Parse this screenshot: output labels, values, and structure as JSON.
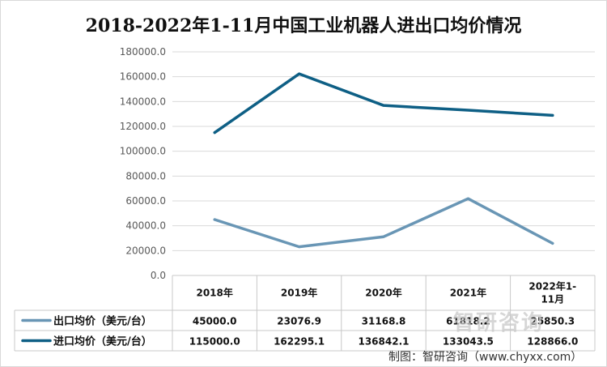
{
  "chart_data": {
    "type": "line",
    "title": "2018-2022年1-11月中国工业机器人进出口均价情况",
    "categories": [
      "2018年",
      "2019年",
      "2020年",
      "2021年",
      "2022年1-11月"
    ],
    "category_lines": [
      [
        "2018年"
      ],
      [
        "2019年"
      ],
      [
        "2020年"
      ],
      [
        "2021年"
      ],
      [
        "2022年1-",
        "11月"
      ]
    ],
    "series": [
      {
        "name": "出口均价（美元/台）",
        "color": "#6996b5",
        "values": [
          45000.0,
          23076.9,
          31168.8,
          61818.2,
          25850.3
        ],
        "labels": [
          "45000.0",
          "23076.9",
          "31168.8",
          "61818.2",
          "25850.3"
        ]
      },
      {
        "name": "进口均价（美元/台）",
        "color": "#0e5f85",
        "values": [
          115000.0,
          162295.1,
          136842.1,
          133043.5,
          128866.0
        ],
        "labels": [
          "115000.0",
          "162295.1",
          "136842.1",
          "133043.5",
          "128866.0"
        ]
      }
    ],
    "ylim": [
      0,
      180000
    ],
    "yticks": [
      0,
      20000,
      40000,
      60000,
      80000,
      100000,
      120000,
      140000,
      160000,
      180000
    ],
    "ytick_labels": [
      "0.0",
      "20000.0",
      "40000.0",
      "60000.0",
      "80000.0",
      "100000.0",
      "120000.0",
      "140000.0",
      "160000.0",
      "180000.0"
    ],
    "grid": "horizontal",
    "legend": "data-table"
  },
  "watermark": "智研咨询",
  "source": "制图：智研咨询（www.chyxx.com）"
}
